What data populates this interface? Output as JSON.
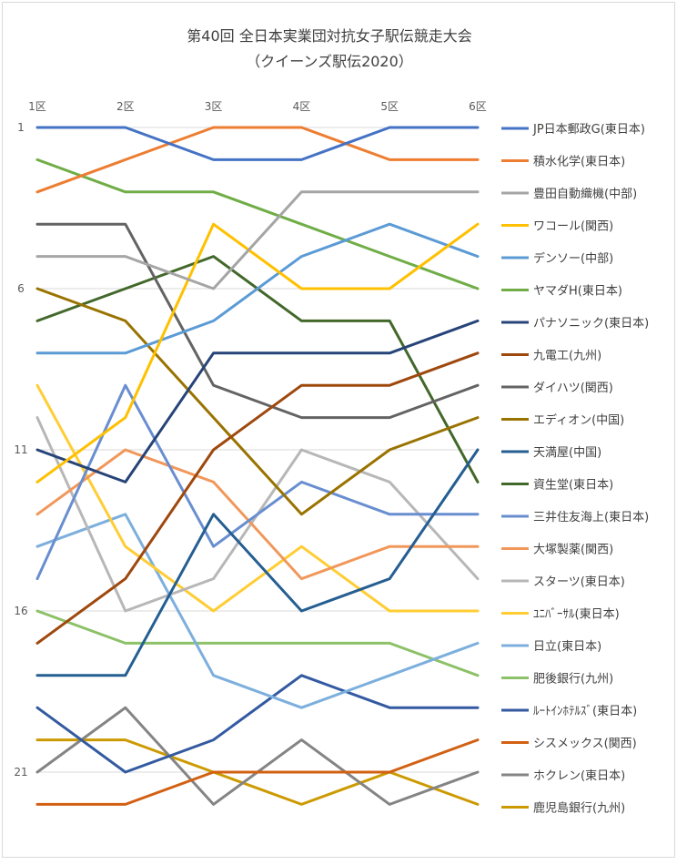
{
  "chart_data": {
    "type": "line",
    "title": "第40回 全日本実業団対抗女子駅伝競走大会",
    "subtitle": "（クイーンズ駅伝2020）",
    "categories": [
      "1区",
      "2区",
      "3区",
      "4区",
      "5区",
      "6区"
    ],
    "y_ticks": [
      "1",
      "6",
      "11",
      "16",
      "21"
    ],
    "ylim": [
      1,
      22
    ],
    "y_reversed": true,
    "grid": true,
    "legend_position": "right",
    "series": [
      {
        "name": "JP日本郵政G(東日本)",
        "color": "#4472C4",
        "values": [
          1,
          1,
          2,
          2,
          1,
          1
        ]
      },
      {
        "name": "積水化学(東日本)",
        "color": "#ED7D31",
        "values": [
          3,
          2,
          1,
          1,
          2,
          2
        ]
      },
      {
        "name": "豊田自動織機(中部)",
        "color": "#A5A5A5",
        "values": [
          5,
          5,
          6,
          3,
          3,
          3
        ]
      },
      {
        "name": "ワコール(関西)",
        "color": "#FFC000",
        "values": [
          12,
          10,
          4,
          6,
          6,
          4
        ]
      },
      {
        "name": "デンソー(中部)",
        "color": "#5B9BD5",
        "values": [
          8,
          8,
          7,
          5,
          4,
          5
        ]
      },
      {
        "name": "ヤマダH(東日本)",
        "color": "#70AD47",
        "values": [
          2,
          3,
          3,
          4,
          5,
          6
        ]
      },
      {
        "name": "パナソニック(東日本)",
        "color": "#264478",
        "values": [
          11,
          12,
          8,
          8,
          8,
          7
        ]
      },
      {
        "name": "九電工(九州)",
        "color": "#9E480E",
        "values": [
          17,
          15,
          11,
          9,
          9,
          8
        ]
      },
      {
        "name": "ダイハツ(関西)",
        "color": "#636363",
        "values": [
          4,
          4,
          9,
          10,
          10,
          9
        ]
      },
      {
        "name": "エディオン(中国)",
        "color": "#997300",
        "values": [
          6,
          7,
          10,
          13,
          11,
          10
        ]
      },
      {
        "name": "天満屋(中国)",
        "color": "#255E91",
        "values": [
          18,
          18,
          13,
          16,
          15,
          11
        ]
      },
      {
        "name": "資生堂(東日本)",
        "color": "#43682B",
        "values": [
          7,
          6,
          5,
          7,
          7,
          12
        ]
      },
      {
        "name": "三井住友海上(東日本)",
        "color": "#698ED0",
        "values": [
          15,
          9,
          14,
          12,
          13,
          13
        ]
      },
      {
        "name": "大塚製薬(関西)",
        "color": "#F1975A",
        "values": [
          13,
          11,
          12,
          15,
          14,
          14
        ]
      },
      {
        "name": "スターツ(東日本)",
        "color": "#B7B7B7",
        "values": [
          10,
          16,
          15,
          11,
          12,
          15
        ]
      },
      {
        "name": "ﾕﾆﾊﾞｰｻﾙ(東日本)",
        "color": "#FFCD33",
        "values": [
          9,
          14,
          16,
          14,
          16,
          16
        ]
      },
      {
        "name": "日立(東日本)",
        "color": "#7CAFDD",
        "values": [
          14,
          13,
          18,
          19,
          18,
          17
        ]
      },
      {
        "name": "肥後銀行(九州)",
        "color": "#8CC168",
        "values": [
          16,
          17,
          17,
          17,
          17,
          18
        ]
      },
      {
        "name": "ﾙｰﾄｲﾝﾎﾃﾙｽﾞ(東日本)",
        "color": "#335AA1",
        "values": [
          19,
          21,
          20,
          18,
          19,
          19
        ]
      },
      {
        "name": "シスメックス(関西)",
        "color": "#D26012",
        "values": [
          22,
          22,
          21,
          21,
          21,
          20
        ]
      },
      {
        "name": "ホクレン(東日本)",
        "color": "#848484",
        "values": [
          21,
          19,
          22,
          20,
          22,
          21
        ]
      },
      {
        "name": "鹿児島銀行(九州)",
        "color": "#CC9A00",
        "values": [
          20,
          20,
          21,
          22,
          21,
          22
        ]
      }
    ]
  }
}
